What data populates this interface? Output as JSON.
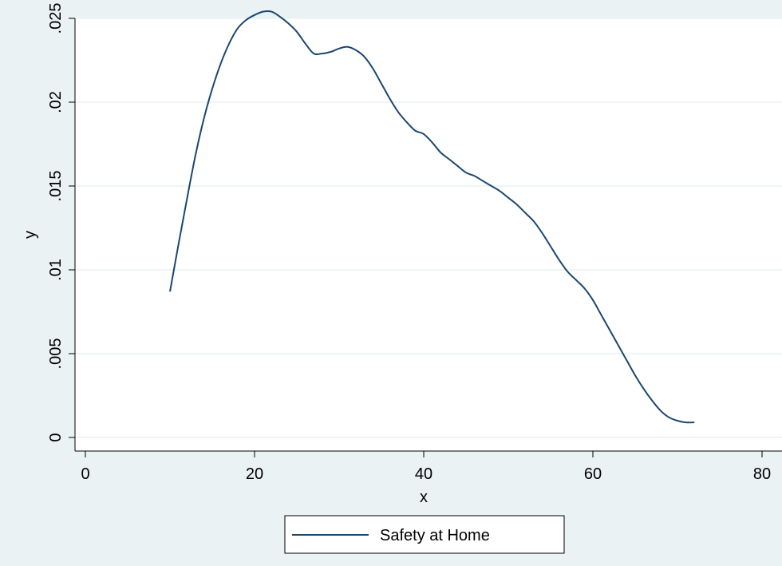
{
  "chart_data": {
    "type": "line",
    "title": "",
    "xlabel": "x",
    "ylabel": "y",
    "xlim": [
      0,
      80
    ],
    "ylim": [
      0,
      0.025
    ],
    "x_ticks": [
      0,
      20,
      40,
      60,
      80
    ],
    "x_tick_labels": [
      "0",
      "20",
      "40",
      "60",
      "80"
    ],
    "y_ticks": [
      0,
      0.005,
      0.01,
      0.015,
      0.02,
      0.025
    ],
    "y_tick_labels": [
      "0",
      ".005",
      ".01",
      ".015",
      ".02",
      ".025"
    ],
    "grid": "horizontal",
    "legend_position": "bottom",
    "colors": {
      "background": "#eaf2f3",
      "plot_area": "#ffffff",
      "grid": "#eaf2f3",
      "line": "#1a476f"
    },
    "series": [
      {
        "name": "Safety at Home",
        "x": [
          10,
          11,
          12,
          13,
          14,
          15,
          16,
          17,
          18,
          19,
          20,
          21,
          22,
          23,
          24,
          25,
          26,
          27,
          28,
          29,
          30,
          31,
          32,
          33,
          34,
          35,
          36,
          37,
          38,
          39,
          40,
          41,
          42,
          43,
          44,
          45,
          46,
          47,
          48,
          49,
          50,
          51,
          52,
          53,
          54,
          55,
          56,
          57,
          58,
          59,
          60,
          61,
          62,
          63,
          64,
          65,
          66,
          67,
          68,
          69,
          70,
          71,
          72
        ],
        "y": [
          0.0087,
          0.0115,
          0.0142,
          0.0168,
          0.019,
          0.0208,
          0.0223,
          0.0235,
          0.0244,
          0.0249,
          0.0252,
          0.0254,
          0.0254,
          0.0251,
          0.0247,
          0.0242,
          0.0235,
          0.0229,
          0.0229,
          0.023,
          0.0232,
          0.0233,
          0.0231,
          0.0227,
          0.022,
          0.0211,
          0.0202,
          0.0194,
          0.0188,
          0.0183,
          0.0181,
          0.0176,
          0.017,
          0.0166,
          0.0162,
          0.0158,
          0.0156,
          0.0153,
          0.015,
          0.0147,
          0.0143,
          0.0139,
          0.0134,
          0.0129,
          0.0122,
          0.0114,
          0.0106,
          0.0099,
          0.0094,
          0.0089,
          0.0082,
          0.0073,
          0.0064,
          0.0055,
          0.0046,
          0.0037,
          0.0029,
          0.0022,
          0.0016,
          0.0012,
          0.001,
          0.0009,
          0.0009
        ]
      }
    ]
  }
}
